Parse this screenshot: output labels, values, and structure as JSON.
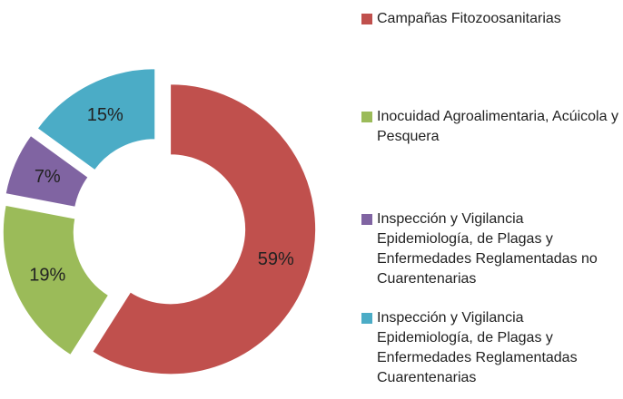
{
  "chart_data": {
    "type": "donut",
    "categories": [
      "Campañas Fitozoosanitarias",
      "Inocuidad Agroalimentaria, Acúicola y Pesquera",
      "Inspección y Vigilancia Epidemiología, de Plagas y Enfermedades Reglamentadas no Cuarentenarias",
      "Inspección y Vigilancia Epidemiología, de Plagas y Enfermedades Reglamentadas Cuarentenarias"
    ],
    "values": [
      59,
      19,
      7,
      15
    ],
    "value_labels": [
      "59%",
      "19%",
      "7%",
      "15%"
    ],
    "colors": [
      "#c0504d",
      "#9bbb59",
      "#8064a2",
      "#4bacc6"
    ],
    "legend": "right"
  }
}
